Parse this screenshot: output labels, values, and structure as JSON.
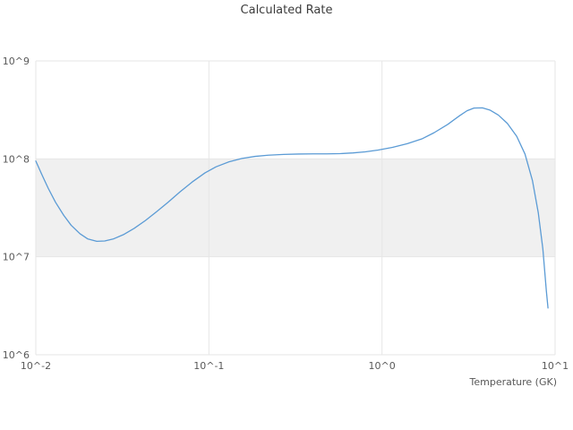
{
  "chart_data": {
    "type": "line",
    "title": "Calculated Rate",
    "xlabel": "Temperature (GK)",
    "ylabel": "",
    "x_scale": "log",
    "y_scale": "log",
    "xlim": [
      0.01,
      10
    ],
    "ylim": [
      1000000,
      1000000000
    ],
    "grid": true,
    "legend": "none",
    "x_ticks": [
      {
        "value": 0.01,
        "label": "10^-2"
      },
      {
        "value": 0.1,
        "label": "10^-1"
      },
      {
        "value": 1,
        "label": "10^0"
      },
      {
        "value": 10,
        "label": "10^1"
      }
    ],
    "y_ticks": [
      {
        "value": 1000000,
        "label": "10^6"
      },
      {
        "value": 10000000,
        "label": "10^7"
      },
      {
        "value": 100000000,
        "label": "10^8"
      },
      {
        "value": 1000000000,
        "label": "10^9"
      }
    ],
    "band": {
      "y_min": 10000000,
      "y_max": 100000000,
      "color": "#f0f0f0"
    },
    "series": [
      {
        "name": "Calculated Rate",
        "color": "#5b9bd5",
        "points": [
          [
            0.01,
            95000000.0
          ],
          [
            0.0108,
            70000000.0
          ],
          [
            0.0118,
            50000000.0
          ],
          [
            0.013,
            36000000.0
          ],
          [
            0.0145,
            26500000.0
          ],
          [
            0.016,
            21000000.0
          ],
          [
            0.018,
            17200000.0
          ],
          [
            0.02,
            15200000.0
          ],
          [
            0.0225,
            14400000.0
          ],
          [
            0.025,
            14500000.0
          ],
          [
            0.028,
            15200000.0
          ],
          [
            0.032,
            16800000.0
          ],
          [
            0.037,
            19500000.0
          ],
          [
            0.043,
            23500000.0
          ],
          [
            0.05,
            29000000.0
          ],
          [
            0.058,
            36000000.0
          ],
          [
            0.068,
            46000000.0
          ],
          [
            0.08,
            58000000.0
          ],
          [
            0.095,
            72000000.0
          ],
          [
            0.11,
            83000000.0
          ],
          [
            0.13,
            93000000.0
          ],
          [
            0.155,
            101000000.0
          ],
          [
            0.185,
            106000000.0
          ],
          [
            0.22,
            109000000.0
          ],
          [
            0.27,
            111000000.0
          ],
          [
            0.33,
            112000000.0
          ],
          [
            0.4,
            112500000.0
          ],
          [
            0.48,
            112500000.0
          ],
          [
            0.57,
            113000000.0
          ],
          [
            0.68,
            115000000.0
          ],
          [
            0.8,
            118000000.0
          ],
          [
            0.95,
            123000000.0
          ],
          [
            1.15,
            131000000.0
          ],
          [
            1.4,
            143000000.0
          ],
          [
            1.7,
            160000000.0
          ],
          [
            2.0,
            185000000.0
          ],
          [
            2.4,
            225000000.0
          ],
          [
            2.8,
            275000000.0
          ],
          [
            3.1,
            310000000.0
          ],
          [
            3.4,
            330000000.0
          ],
          [
            3.8,
            332000000.0
          ],
          [
            4.2,
            315000000.0
          ],
          [
            4.7,
            280000000.0
          ],
          [
            5.3,
            230000000.0
          ],
          [
            6.0,
            170000000.0
          ],
          [
            6.7,
            112000000.0
          ],
          [
            7.4,
            60000000.0
          ],
          [
            8.0,
            28000000.0
          ],
          [
            8.5,
            12000000.0
          ],
          [
            8.9,
            4500000.0
          ],
          [
            9.1,
            3000000.0
          ]
        ]
      }
    ]
  },
  "colors": {
    "background": "#ffffff",
    "grid": "#e6e6e6",
    "band": "#f0f0f0",
    "line": "#5b9bd5",
    "title_text": "#3c3c3c",
    "tick_text": "#595959"
  }
}
